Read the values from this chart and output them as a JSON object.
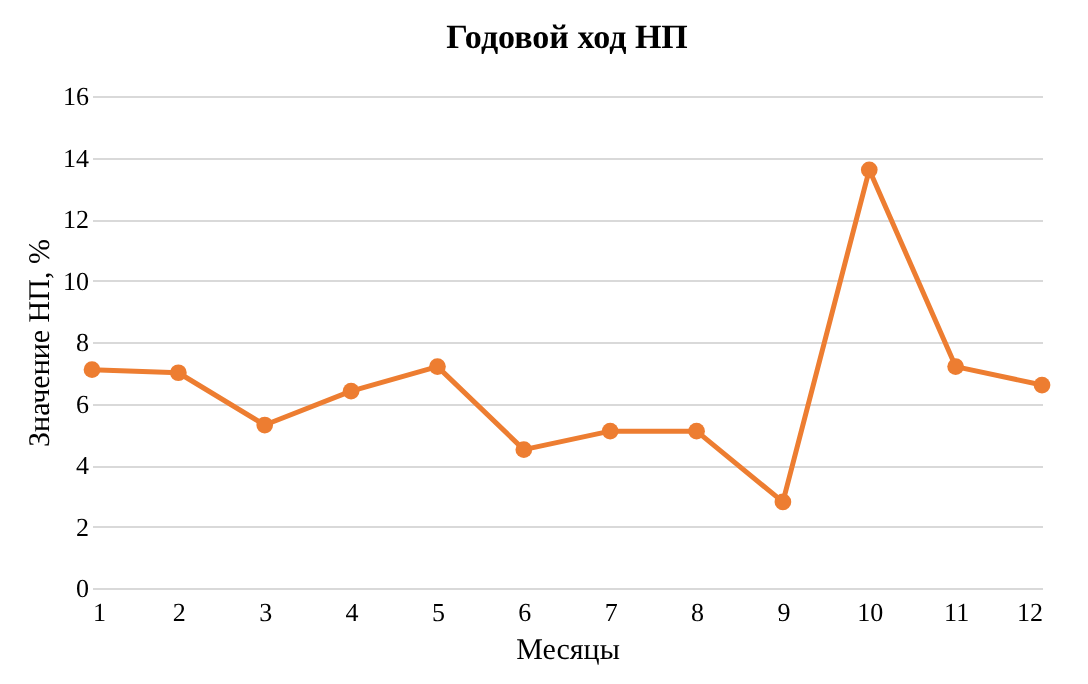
{
  "chart_data": {
    "type": "line",
    "title": "Годовой ход НП",
    "xlabel": "Месяцы",
    "ylabel": "Значение НП, %",
    "x": [
      1,
      2,
      3,
      4,
      5,
      6,
      7,
      8,
      9,
      10,
      11,
      12
    ],
    "series": [
      {
        "color": "#ed7d31",
        "values": [
          7.1,
          7.0,
          5.3,
          6.4,
          7.2,
          4.5,
          5.1,
          5.1,
          2.8,
          13.6,
          7.2,
          6.6
        ]
      }
    ],
    "xlim": [
      1,
      12
    ],
    "xticks": [
      1,
      2,
      3,
      4,
      5,
      6,
      7,
      8,
      9,
      10,
      11,
      12
    ],
    "ylim": [
      0,
      16
    ],
    "yticks": [
      0,
      2,
      4,
      6,
      8,
      10,
      12,
      14,
      16
    ],
    "grid": "y",
    "marker": "circle",
    "line_style": "solid",
    "legend": false
  }
}
